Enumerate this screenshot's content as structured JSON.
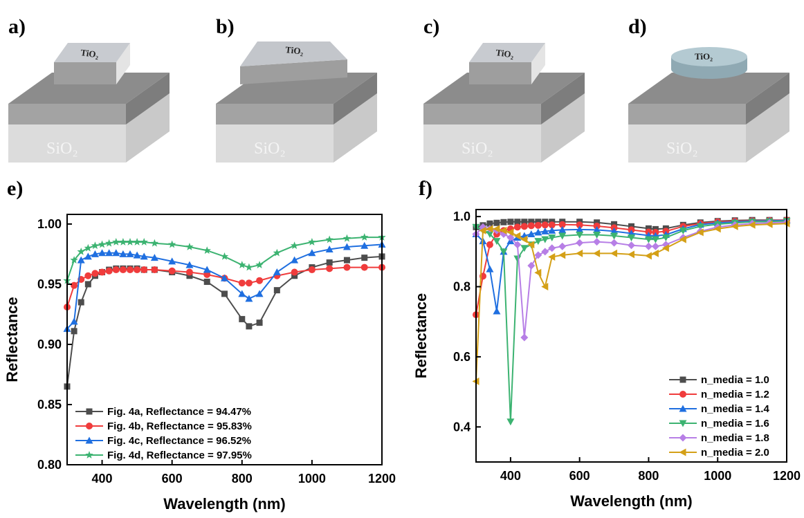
{
  "diagrams": [
    {
      "label": "a)",
      "top": "TiO₂",
      "substrate": "SiO₂"
    },
    {
      "label": "b)",
      "top": "TiO₂",
      "substrate": "SiO₂"
    },
    {
      "label": "c)",
      "top": "TiO₂",
      "substrate": "SiO₂"
    },
    {
      "label": "d)",
      "top": "TiO₂",
      "substrate": "SiO₂"
    }
  ],
  "chart_data": [
    {
      "type": "line",
      "panel_label": "e)",
      "x_label": "Wavelength (nm)",
      "y_label": "Reflectance",
      "xlim": [
        300,
        1200
      ],
      "ylim": [
        0.8,
        1.008
      ],
      "xticks": [
        400,
        600,
        800,
        1000,
        1200
      ],
      "yticks": [
        {
          "value": 0.8,
          "label": "0.80"
        },
        0.85,
        {
          "value": 0.9,
          "label": "0.90"
        },
        0.95,
        {
          "value": 1.0,
          "label": "1.00"
        }
      ],
      "legend": "lower left",
      "x": [
        300,
        320,
        340,
        360,
        380,
        400,
        420,
        440,
        460,
        480,
        500,
        520,
        550,
        600,
        650,
        700,
        750,
        800,
        820,
        850,
        900,
        950,
        1000,
        1050,
        1100,
        1150,
        1200
      ],
      "series": [
        {
          "name": "Fig. 4a, Reflectance = 94.47%",
          "color": "#4d4d4d",
          "marker": "square",
          "values": [
            0.865,
            0.911,
            0.935,
            0.95,
            0.957,
            0.96,
            0.962,
            0.963,
            0.963,
            0.963,
            0.963,
            0.962,
            0.962,
            0.96,
            0.957,
            0.952,
            0.942,
            0.921,
            0.915,
            0.918,
            0.945,
            0.957,
            0.964,
            0.968,
            0.97,
            0.972,
            0.973
          ]
        },
        {
          "name": "Fig. 4b, Reflectance = 95.83%",
          "color": "#f03c3c",
          "marker": "circle",
          "values": [
            0.931,
            0.949,
            0.954,
            0.957,
            0.959,
            0.96,
            0.961,
            0.962,
            0.962,
            0.962,
            0.962,
            0.962,
            0.962,
            0.961,
            0.96,
            0.958,
            0.955,
            0.951,
            0.951,
            0.953,
            0.957,
            0.96,
            0.962,
            0.963,
            0.964,
            0.964,
            0.964
          ]
        },
        {
          "name": "Fig. 4c, Reflectance = 96.52%",
          "color": "#1f6fe0",
          "marker": "triangle-up",
          "values": [
            0.913,
            0.919,
            0.97,
            0.973,
            0.975,
            0.976,
            0.976,
            0.976,
            0.975,
            0.975,
            0.974,
            0.973,
            0.972,
            0.969,
            0.966,
            0.962,
            0.955,
            0.942,
            0.938,
            0.942,
            0.96,
            0.97,
            0.976,
            0.979,
            0.981,
            0.982,
            0.983
          ]
        },
        {
          "name": "Fig. 4d, Reflectance = 97.95%",
          "color": "#3cb371",
          "marker": "star",
          "values": [
            0.953,
            0.97,
            0.977,
            0.98,
            0.982,
            0.983,
            0.984,
            0.985,
            0.985,
            0.985,
            0.985,
            0.985,
            0.984,
            0.983,
            0.981,
            0.978,
            0.973,
            0.966,
            0.964,
            0.966,
            0.976,
            0.982,
            0.985,
            0.987,
            0.988,
            0.989,
            0.989
          ]
        }
      ]
    },
    {
      "type": "line",
      "panel_label": "f)",
      "x_label": "Wavelength (nm)",
      "y_label": "Reflectance",
      "xlim": [
        300,
        1200
      ],
      "ylim": [
        0.3,
        1.02
      ],
      "xticks": [
        400,
        600,
        800,
        1000,
        1200
      ],
      "yticks": [
        0.4,
        0.6,
        0.8,
        {
          "value": 1.0,
          "label": "1.0"
        }
      ],
      "legend": "lower right",
      "x": [
        300,
        320,
        340,
        360,
        380,
        400,
        420,
        440,
        460,
        480,
        500,
        520,
        550,
        600,
        650,
        700,
        750,
        800,
        820,
        850,
        900,
        950,
        1000,
        1050,
        1100,
        1150,
        1200
      ],
      "series": [
        {
          "name": "n_media = 1.0",
          "color": "#4d4d4d",
          "marker": "square",
          "values": [
            0.97,
            0.975,
            0.98,
            0.982,
            0.984,
            0.985,
            0.985,
            0.985,
            0.985,
            0.985,
            0.985,
            0.985,
            0.985,
            0.985,
            0.983,
            0.978,
            0.972,
            0.966,
            0.964,
            0.966,
            0.976,
            0.983,
            0.987,
            0.989,
            0.99,
            0.99,
            0.99
          ]
        },
        {
          "name": "n_media = 1.2",
          "color": "#f03c3c",
          "marker": "circle",
          "values": [
            0.72,
            0.83,
            0.92,
            0.95,
            0.96,
            0.965,
            0.97,
            0.972,
            0.974,
            0.975,
            0.976,
            0.976,
            0.977,
            0.976,
            0.973,
            0.968,
            0.962,
            0.956,
            0.955,
            0.958,
            0.972,
            0.98,
            0.985,
            0.987,
            0.988,
            0.989,
            0.99
          ]
        },
        {
          "name": "n_media = 1.4",
          "color": "#1f6fe0",
          "marker": "triangle-up",
          "values": [
            0.95,
            0.93,
            0.85,
            0.73,
            0.9,
            0.93,
            0.94,
            0.945,
            0.95,
            0.955,
            0.958,
            0.96,
            0.962,
            0.963,
            0.962,
            0.958,
            0.952,
            0.946,
            0.945,
            0.948,
            0.965,
            0.977,
            0.982,
            0.985,
            0.987,
            0.988,
            0.989
          ]
        },
        {
          "name": "n_media = 1.6",
          "color": "#3cb371",
          "marker": "triangle-down",
          "values": [
            0.97,
            0.96,
            0.95,
            0.93,
            0.9,
            0.415,
            0.88,
            0.91,
            0.92,
            0.93,
            0.935,
            0.94,
            0.945,
            0.948,
            0.948,
            0.945,
            0.94,
            0.935,
            0.935,
            0.94,
            0.96,
            0.972,
            0.978,
            0.982,
            0.985,
            0.986,
            0.987
          ]
        },
        {
          "name": "n_media = 1.8",
          "color": "#b77fe6",
          "marker": "diamond",
          "values": [
            0.95,
            0.97,
            0.965,
            0.96,
            0.95,
            0.94,
            0.92,
            0.655,
            0.86,
            0.89,
            0.9,
            0.91,
            0.915,
            0.925,
            0.928,
            0.925,
            0.918,
            0.915,
            0.915,
            0.92,
            0.94,
            0.958,
            0.97,
            0.976,
            0.98,
            0.982,
            0.984
          ]
        },
        {
          "name": "n_media = 2.0",
          "color": "#d4a017",
          "marker": "triangle-left",
          "values": [
            0.53,
            0.96,
            0.965,
            0.965,
            0.96,
            0.955,
            0.945,
            0.935,
            0.92,
            0.84,
            0.8,
            0.885,
            0.89,
            0.895,
            0.895,
            0.895,
            0.892,
            0.888,
            0.895,
            0.91,
            0.935,
            0.955,
            0.965,
            0.972,
            0.976,
            0.978,
            0.98
          ]
        }
      ]
    }
  ]
}
